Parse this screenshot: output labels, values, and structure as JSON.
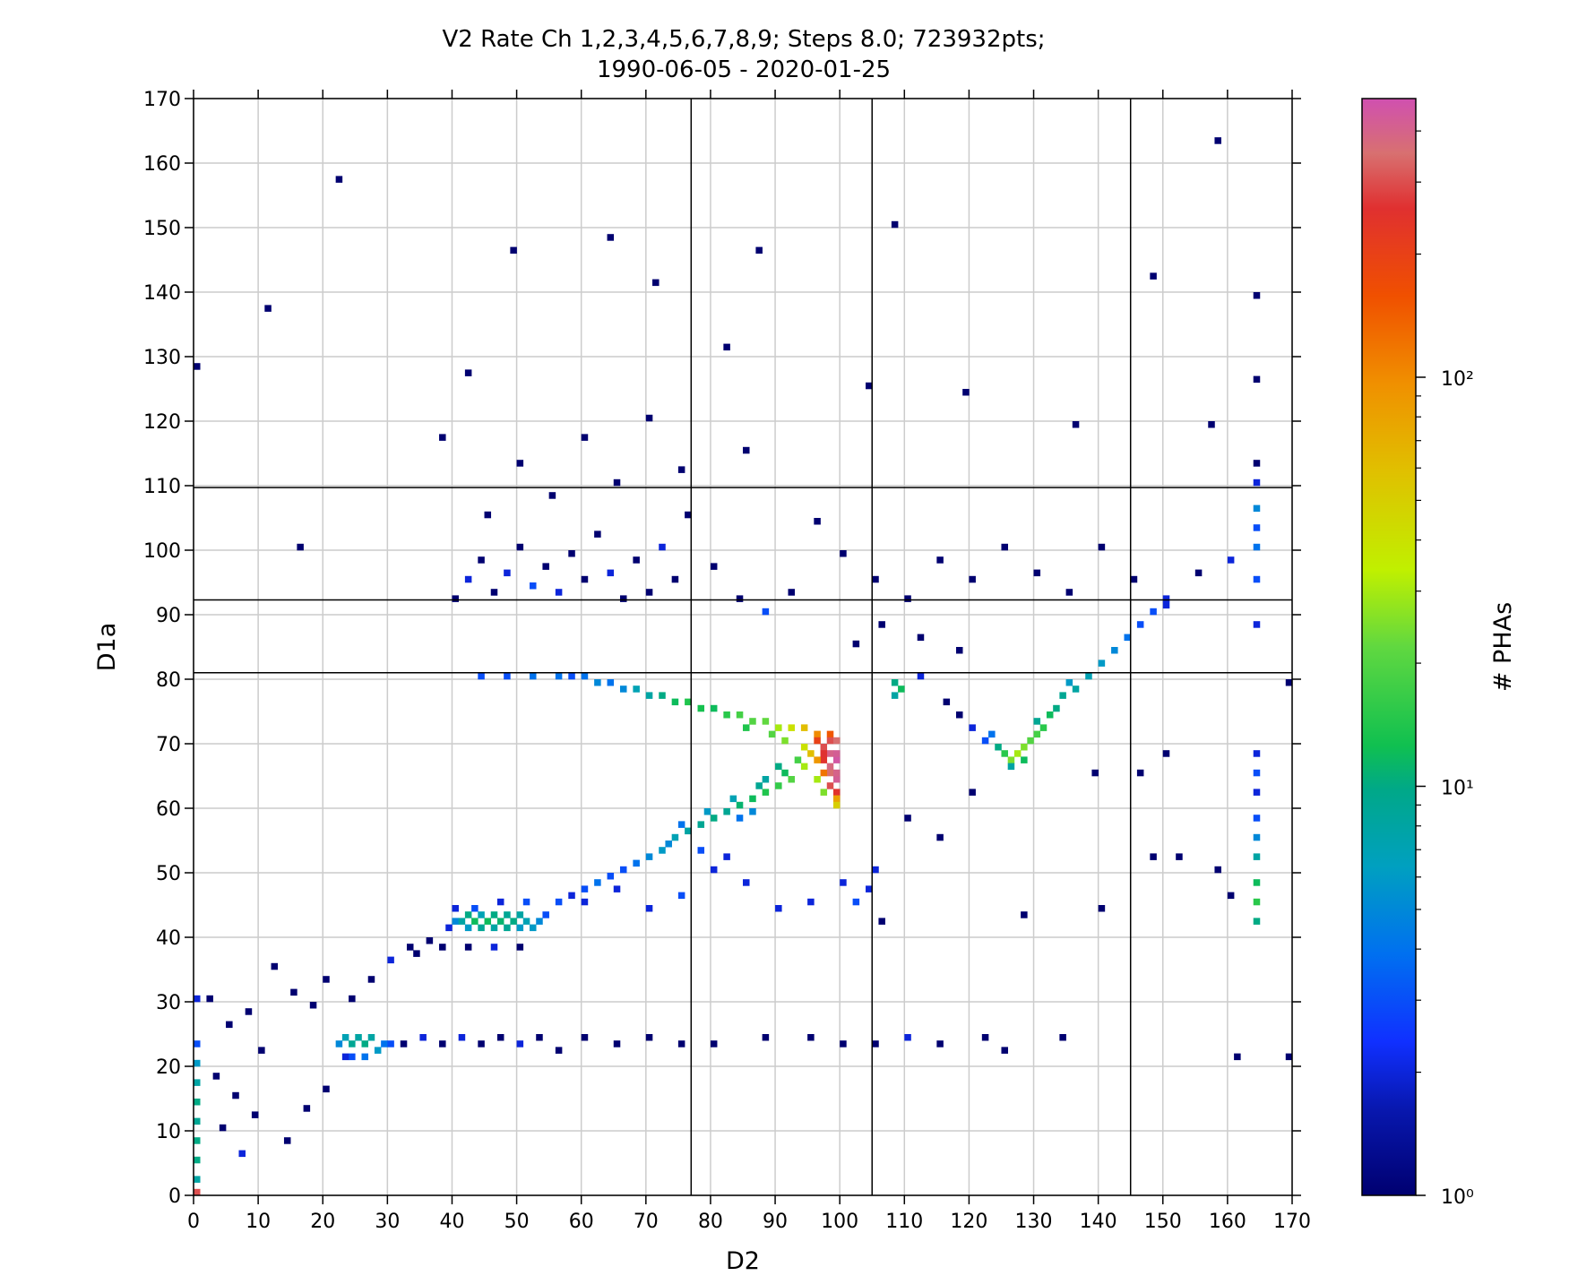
{
  "chart_data": {
    "type": "heatmap",
    "title_line1": "V2 Rate Ch 1,2,3,4,5,6,7,8,9; Steps 8.0; 723932pts;",
    "title_line2": "1990-06-05 - 2020-01-25",
    "xlabel": "D2",
    "ylabel": "D1a",
    "xlim": [
      0,
      170
    ],
    "ylim": [
      0,
      170
    ],
    "xticks": [
      0,
      10,
      20,
      30,
      40,
      50,
      60,
      70,
      80,
      90,
      100,
      110,
      120,
      130,
      140,
      150,
      160,
      170
    ],
    "yticks": [
      0,
      10,
      20,
      30,
      40,
      50,
      60,
      70,
      80,
      90,
      100,
      110,
      120,
      130,
      140,
      150,
      160,
      170
    ],
    "grid": true,
    "bin_size": 1,
    "boundary_lines": {
      "x": [
        77,
        105,
        145
      ],
      "y": [
        81,
        92.3,
        109.7
      ]
    },
    "colorbar": {
      "label": "# PHAs",
      "scale": "log",
      "range": [
        1,
        480
      ],
      "tick_values": [
        1,
        10,
        100
      ],
      "tick_labels": [
        "10⁰",
        "10¹",
        "10²"
      ],
      "colormap_stops": [
        [
          0.0,
          "#000070"
        ],
        [
          0.08,
          "#0818b0"
        ],
        [
          0.14,
          "#1030ff"
        ],
        [
          0.22,
          "#0070f0"
        ],
        [
          0.3,
          "#00a0c0"
        ],
        [
          0.37,
          "#00a888"
        ],
        [
          0.41,
          "#10c050"
        ],
        [
          0.5,
          "#60d840"
        ],
        [
          0.57,
          "#c0f000"
        ],
        [
          0.66,
          "#e0c000"
        ],
        [
          0.74,
          "#f09000"
        ],
        [
          0.82,
          "#f05000"
        ],
        [
          0.9,
          "#e03030"
        ],
        [
          0.95,
          "#d87070"
        ],
        [
          1.0,
          "#d050b0"
        ]
      ]
    },
    "cells_format": [
      "D2",
      "D1a",
      "count"
    ],
    "cells": [
      [
        40,
        42,
        5
      ],
      [
        41,
        42,
        8
      ],
      [
        42,
        43,
        10
      ],
      [
        43,
        42,
        12
      ],
      [
        44,
        41,
        9
      ],
      [
        45,
        42,
        12
      ],
      [
        46,
        43,
        10
      ],
      [
        47,
        42,
        11
      ],
      [
        48,
        41,
        9
      ],
      [
        49,
        42,
        10
      ],
      [
        50,
        43,
        8
      ],
      [
        51,
        42,
        7
      ],
      [
        52,
        41,
        6
      ],
      [
        53,
        42,
        5
      ],
      [
        42,
        41,
        6
      ],
      [
        44,
        43,
        7
      ],
      [
        46,
        41,
        8
      ],
      [
        48,
        43,
        9
      ],
      [
        50,
        41,
        6
      ],
      [
        54,
        43,
        3
      ],
      [
        39,
        41,
        2
      ],
      [
        40,
        44,
        2
      ],
      [
        43,
        44,
        3
      ],
      [
        47,
        45,
        2
      ],
      [
        51,
        45,
        3
      ],
      [
        56,
        45,
        3
      ],
      [
        58,
        46,
        2
      ],
      [
        60,
        47,
        3
      ],
      [
        62,
        48,
        4
      ],
      [
        64,
        49,
        3
      ],
      [
        66,
        50,
        3
      ],
      [
        68,
        51,
        4
      ],
      [
        70,
        52,
        5
      ],
      [
        72,
        53,
        6
      ],
      [
        74,
        55,
        7
      ],
      [
        76,
        56,
        8
      ],
      [
        78,
        57,
        9
      ],
      [
        80,
        58,
        10
      ],
      [
        82,
        59,
        9
      ],
      [
        84,
        60,
        11
      ],
      [
        86,
        61,
        12
      ],
      [
        88,
        62,
        14
      ],
      [
        90,
        63,
        16
      ],
      [
        92,
        64,
        20
      ],
      [
        94,
        66,
        30
      ],
      [
        90,
        66,
        10
      ],
      [
        88,
        64,
        8
      ],
      [
        86,
        59,
        5
      ],
      [
        84,
        58,
        4
      ],
      [
        73,
        54,
        5
      ],
      [
        75,
        57,
        4
      ],
      [
        79,
        59,
        6
      ],
      [
        83,
        61,
        7
      ],
      [
        87,
        63,
        9
      ],
      [
        91,
        65,
        12
      ],
      [
        93,
        67,
        18
      ],
      [
        60,
        80,
        4
      ],
      [
        62,
        79,
        5
      ],
      [
        64,
        79,
        4
      ],
      [
        66,
        78,
        5
      ],
      [
        68,
        78,
        7
      ],
      [
        70,
        77,
        8
      ],
      [
        72,
        77,
        10
      ],
      [
        74,
        76,
        12
      ],
      [
        76,
        76,
        14
      ],
      [
        78,
        75,
        13
      ],
      [
        80,
        75,
        12
      ],
      [
        82,
        74,
        15
      ],
      [
        84,
        74,
        18
      ],
      [
        86,
        73,
        20
      ],
      [
        88,
        73,
        22
      ],
      [
        90,
        72,
        30
      ],
      [
        92,
        72,
        40
      ],
      [
        94,
        72,
        60
      ],
      [
        96,
        71,
        100
      ],
      [
        98,
        71,
        150
      ],
      [
        44,
        80,
        3
      ],
      [
        48,
        80,
        3
      ],
      [
        52,
        80,
        4
      ],
      [
        56,
        80,
        4
      ],
      [
        58,
        80,
        3
      ],
      [
        85,
        72,
        14
      ],
      [
        89,
        71,
        20
      ],
      [
        91,
        70,
        25
      ],
      [
        96,
        70,
        200
      ],
      [
        97,
        69,
        300
      ],
      [
        98,
        68,
        400
      ],
      [
        99,
        67,
        450
      ],
      [
        97,
        67,
        250
      ],
      [
        98,
        65,
        350
      ],
      [
        99,
        64,
        420
      ],
      [
        98,
        63,
        300
      ],
      [
        99,
        62,
        250
      ],
      [
        99,
        61,
        80
      ],
      [
        99,
        60,
        50
      ],
      [
        97,
        65,
        120
      ],
      [
        96,
        67,
        90
      ],
      [
        95,
        68,
        60
      ],
      [
        94,
        69,
        40
      ],
      [
        98,
        70,
        300
      ],
      [
        99,
        70,
        350
      ],
      [
        96,
        64,
        30
      ],
      [
        97,
        62,
        25
      ],
      [
        99,
        68,
        420
      ],
      [
        98,
        66,
        380
      ],
      [
        99,
        65,
        400
      ],
      [
        97,
        68,
        260
      ],
      [
        124,
        69,
        10
      ],
      [
        125,
        68,
        15
      ],
      [
        126,
        67,
        25
      ],
      [
        127,
        68,
        30
      ],
      [
        128,
        69,
        25
      ],
      [
        129,
        70,
        20
      ],
      [
        130,
        71,
        18
      ],
      [
        131,
        72,
        15
      ],
      [
        132,
        74,
        12
      ],
      [
        133,
        75,
        10
      ],
      [
        134,
        77,
        9
      ],
      [
        136,
        78,
        8
      ],
      [
        138,
        80,
        7
      ],
      [
        140,
        82,
        6
      ],
      [
        142,
        84,
        5
      ],
      [
        144,
        86,
        4
      ],
      [
        146,
        88,
        3
      ],
      [
        148,
        90,
        3
      ],
      [
        150,
        91,
        2
      ],
      [
        126,
        66,
        8
      ],
      [
        122,
        70,
        3
      ],
      [
        120,
        72,
        2
      ],
      [
        118,
        74,
        1
      ],
      [
        123,
        71,
        4
      ],
      [
        128,
        67,
        12
      ],
      [
        130,
        73,
        9
      ],
      [
        135,
        79,
        6
      ],
      [
        108,
        79,
        10
      ],
      [
        109,
        78,
        12
      ],
      [
        108,
        77,
        8
      ],
      [
        164,
        42,
        10
      ],
      [
        164,
        45,
        15
      ],
      [
        164,
        48,
        12
      ],
      [
        164,
        52,
        8
      ],
      [
        164,
        55,
        5
      ],
      [
        164,
        58,
        3
      ],
      [
        164,
        62,
        2
      ],
      [
        164,
        65,
        3
      ],
      [
        164,
        68,
        2
      ],
      [
        164,
        88,
        2
      ],
      [
        164,
        95,
        3
      ],
      [
        164,
        100,
        4
      ],
      [
        164,
        103,
        3
      ],
      [
        164,
        106,
        5
      ],
      [
        164,
        110,
        2
      ],
      [
        164,
        113,
        1
      ],
      [
        164,
        126,
        1
      ],
      [
        164,
        139,
        1
      ],
      [
        0,
        0,
        300
      ],
      [
        0,
        2,
        8
      ],
      [
        0,
        5,
        10
      ],
      [
        0,
        8,
        10
      ],
      [
        0,
        11,
        9
      ],
      [
        0,
        14,
        10
      ],
      [
        0,
        17,
        8
      ],
      [
        0,
        20,
        6
      ],
      [
        0,
        23,
        3
      ],
      [
        0,
        30,
        2
      ],
      [
        22,
        23,
        5
      ],
      [
        23,
        24,
        7
      ],
      [
        24,
        23,
        9
      ],
      [
        25,
        24,
        8
      ],
      [
        26,
        23,
        10
      ],
      [
        27,
        24,
        8
      ],
      [
        28,
        22,
        6
      ],
      [
        29,
        23,
        4
      ],
      [
        24,
        21,
        3
      ],
      [
        26,
        21,
        4
      ],
      [
        30,
        23,
        3
      ],
      [
        23,
        21,
        2
      ],
      [
        32,
        23,
        1
      ],
      [
        35,
        24,
        2
      ],
      [
        38,
        23,
        1
      ],
      [
        41,
        24,
        2
      ],
      [
        44,
        23,
        1
      ],
      [
        47,
        24,
        1
      ],
      [
        50,
        23,
        2
      ],
      [
        53,
        24,
        1
      ],
      [
        56,
        22,
        1
      ],
      [
        60,
        24,
        1
      ],
      [
        65,
        23,
        1
      ],
      [
        70,
        24,
        1
      ],
      [
        75,
        23,
        1
      ],
      [
        80,
        23,
        1
      ],
      [
        88,
        24,
        1
      ],
      [
        95,
        24,
        1
      ],
      [
        100,
        23,
        1
      ],
      [
        105,
        23,
        1
      ],
      [
        110,
        24,
        2
      ],
      [
        115,
        23,
        1
      ],
      [
        122,
        24,
        1
      ],
      [
        125,
        22,
        1
      ],
      [
        134,
        24,
        1
      ],
      [
        2,
        30,
        1
      ],
      [
        5,
        26,
        1
      ],
      [
        8,
        28,
        1
      ],
      [
        10,
        22,
        1
      ],
      [
        12,
        35,
        1
      ],
      [
        15,
        31,
        1
      ],
      [
        18,
        29,
        1
      ],
      [
        20,
        33,
        1
      ],
      [
        3,
        18,
        1
      ],
      [
        6,
        15,
        1
      ],
      [
        9,
        12,
        1
      ],
      [
        14,
        8,
        1
      ],
      [
        17,
        13,
        1
      ],
      [
        20,
        16,
        1
      ],
      [
        4,
        10,
        1
      ],
      [
        7,
        6,
        2
      ],
      [
        30,
        36,
        2
      ],
      [
        33,
        38,
        1
      ],
      [
        36,
        39,
        1
      ],
      [
        27,
        33,
        1
      ],
      [
        24,
        30,
        1
      ],
      [
        40,
        92,
        1
      ],
      [
        42,
        95,
        2
      ],
      [
        44,
        98,
        1
      ],
      [
        46,
        93,
        1
      ],
      [
        48,
        96,
        2
      ],
      [
        50,
        100,
        1
      ],
      [
        52,
        94,
        3
      ],
      [
        54,
        97,
        1
      ],
      [
        56,
        93,
        2
      ],
      [
        58,
        99,
        1
      ],
      [
        60,
        95,
        1
      ],
      [
        62,
        102,
        1
      ],
      [
        64,
        96,
        2
      ],
      [
        66,
        92,
        1
      ],
      [
        68,
        98,
        1
      ],
      [
        70,
        93,
        1
      ],
      [
        72,
        100,
        2
      ],
      [
        74,
        95,
        1
      ],
      [
        76,
        105,
        1
      ],
      [
        80,
        97,
        1
      ],
      [
        84,
        92,
        1
      ],
      [
        88,
        90,
        3
      ],
      [
        92,
        93,
        1
      ],
      [
        96,
        104,
        1
      ],
      [
        100,
        99,
        1
      ],
      [
        45,
        105,
        1
      ],
      [
        55,
        108,
        1
      ],
      [
        65,
        110,
        1
      ],
      [
        75,
        112,
        1
      ],
      [
        85,
        115,
        1
      ],
      [
        60,
        117,
        1
      ],
      [
        70,
        120,
        1
      ],
      [
        50,
        113,
        1
      ],
      [
        38,
        117,
        1
      ],
      [
        22,
        157,
        1
      ],
      [
        108,
        150,
        1
      ],
      [
        158,
        163,
        1
      ],
      [
        148,
        142,
        1
      ],
      [
        11,
        137,
        1
      ],
      [
        49,
        146,
        1
      ],
      [
        64,
        148,
        1
      ],
      [
        87,
        146,
        1
      ],
      [
        71,
        141,
        1
      ],
      [
        42,
        127,
        1
      ],
      [
        119,
        124,
        1
      ],
      [
        136,
        119,
        1
      ],
      [
        157,
        119,
        1
      ],
      [
        0,
        128,
        1
      ],
      [
        16,
        100,
        1
      ],
      [
        82,
        131,
        1
      ],
      [
        104,
        125,
        1
      ],
      [
        105,
        95,
        1
      ],
      [
        110,
        92,
        1
      ],
      [
        115,
        98,
        1
      ],
      [
        120,
        95,
        1
      ],
      [
        125,
        100,
        1
      ],
      [
        130,
        96,
        1
      ],
      [
        135,
        93,
        1
      ],
      [
        140,
        100,
        1
      ],
      [
        145,
        95,
        1
      ],
      [
        150,
        92,
        2
      ],
      [
        155,
        96,
        1
      ],
      [
        160,
        98,
        2
      ],
      [
        102,
        85,
        1
      ],
      [
        106,
        88,
        1
      ],
      [
        112,
        86,
        1
      ],
      [
        118,
        84,
        1
      ],
      [
        112,
        80,
        2
      ],
      [
        116,
        76,
        1
      ],
      [
        120,
        62,
        1
      ],
      [
        115,
        55,
        1
      ],
      [
        110,
        58,
        1
      ],
      [
        105,
        50,
        2
      ],
      [
        102,
        45,
        3
      ],
      [
        104,
        47,
        2
      ],
      [
        100,
        48,
        2
      ],
      [
        106,
        42,
        1
      ],
      [
        95,
        45,
        2
      ],
      [
        90,
        44,
        2
      ],
      [
        85,
        48,
        2
      ],
      [
        80,
        50,
        2
      ],
      [
        75,
        46,
        3
      ],
      [
        70,
        44,
        2
      ],
      [
        65,
        47,
        2
      ],
      [
        60,
        45,
        2
      ],
      [
        78,
        53,
        3
      ],
      [
        82,
        52,
        2
      ],
      [
        148,
        52,
        1
      ],
      [
        152,
        52,
        1
      ],
      [
        158,
        50,
        1
      ],
      [
        160,
        46,
        1
      ],
      [
        140,
        44,
        1
      ],
      [
        128,
        43,
        1
      ],
      [
        146,
        65,
        1
      ],
      [
        139,
        65,
        1
      ],
      [
        150,
        68,
        1
      ],
      [
        169,
        79,
        1
      ],
      [
        161,
        21,
        1
      ],
      [
        169,
        21,
        1
      ],
      [
        42,
        38,
        1
      ],
      [
        46,
        38,
        2
      ],
      [
        50,
        38,
        1
      ],
      [
        38,
        38,
        1
      ],
      [
        34,
        37,
        1
      ]
    ]
  }
}
